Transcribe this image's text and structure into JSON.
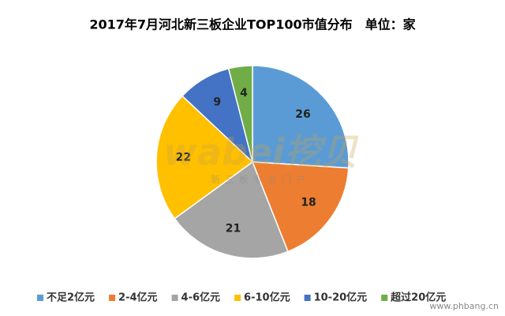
{
  "chart_data": {
    "type": "pie",
    "title": "2017年7月河北新三板企业TOP100市值分布　单位：家",
    "categories": [
      "不足2亿元",
      "2-4亿元",
      "4-6亿元",
      "6-10亿元",
      "10-20亿元",
      "超过20亿元"
    ],
    "values": [
      26,
      18,
      21,
      22,
      9,
      4
    ],
    "colors": [
      "#5b9bd5",
      "#ed7d31",
      "#a5a5a5",
      "#ffc000",
      "#4472c4",
      "#70ad47"
    ],
    "legend": "bottom"
  },
  "watermark": {
    "logo": "wabei挖贝",
    "tagline": "新三板专业门户",
    "site": "www.phbang.cn"
  }
}
